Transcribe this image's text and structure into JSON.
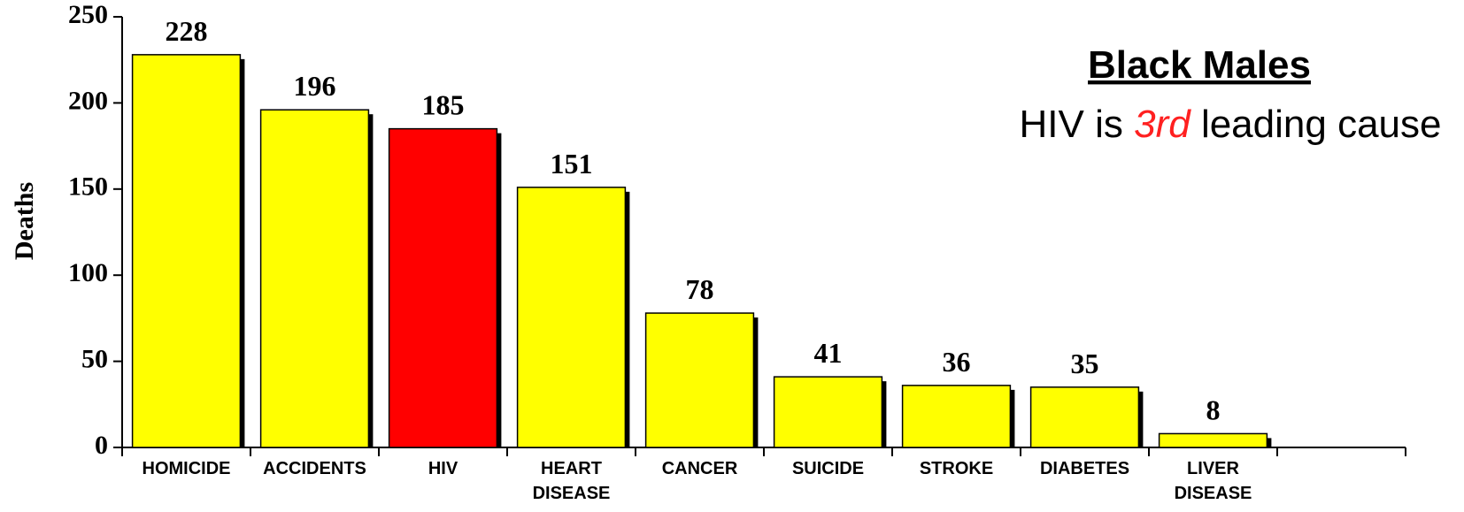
{
  "chart_data": {
    "type": "bar",
    "ylabel": "Deaths",
    "categories": [
      "HOMICIDE",
      "ACCIDENTS",
      "HIV",
      "HEART DISEASE",
      "CANCER",
      "SUICIDE",
      "STROKE",
      "DIABETES",
      "LIVER DISEASE",
      null
    ],
    "values": [
      228,
      196,
      185,
      151,
      78,
      41,
      36,
      35,
      8,
      null
    ],
    "colors": [
      "#ffff00",
      "#ffff00",
      "#ff0000",
      "#ffff00",
      "#ffff00",
      "#ffff00",
      "#ffff00",
      "#ffff00",
      "#ffff00",
      null
    ],
    "ylim": [
      0,
      250
    ],
    "yticks": [
      0,
      50,
      100,
      150,
      200,
      250
    ],
    "annotation": {
      "title": "Black Males",
      "text": [
        "HIV is",
        "3rd",
        "leading cause"
      ],
      "highlight_color": "#ff2020"
    }
  }
}
